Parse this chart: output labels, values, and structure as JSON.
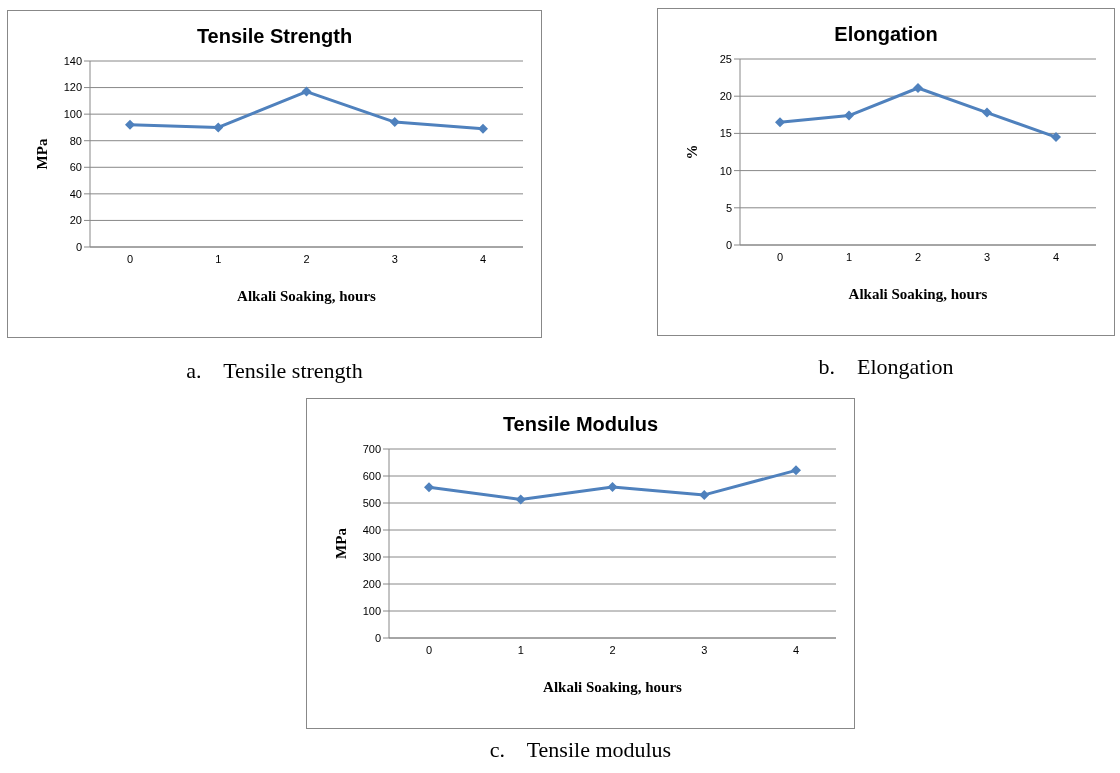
{
  "chart_data": [
    {
      "type": "line",
      "title": "Tensile Strength",
      "xlabel": "Alkali Soaking, hours",
      "ylabel": "MPa",
      "categories": [
        "0",
        "1",
        "2",
        "3",
        "4"
      ],
      "series": [
        {
          "color": "#4f81bd",
          "values": [
            92,
            90,
            117,
            94,
            89
          ]
        }
      ],
      "ylim": [
        0,
        140
      ],
      "yticks": [
        0,
        20,
        40,
        60,
        80,
        100,
        120,
        140
      ],
      "grid": "y",
      "legend": false,
      "marker": "diamond",
      "line_style": "solid",
      "annotations": [
        "a.    Tensile strength"
      ]
    },
    {
      "type": "line",
      "title": "Elongation",
      "xlabel": "Alkali Soaking, hours",
      "ylabel": "%",
      "categories": [
        "0",
        "1",
        "2",
        "3",
        "4"
      ],
      "series": [
        {
          "color": "#4f81bd",
          "values": [
            16.5,
            17.4,
            21.1,
            17.8,
            14.5
          ]
        }
      ],
      "ylim": [
        0,
        25
      ],
      "yticks": [
        0,
        5,
        10,
        15,
        20,
        25
      ],
      "grid": "y",
      "legend": false,
      "marker": "diamond",
      "line_style": "solid",
      "annotations": [
        "b.    Elongation"
      ]
    },
    {
      "type": "line",
      "title": "Tensile Modulus",
      "xlabel": "Alkali Soaking, hours",
      "ylabel": "MPa",
      "categories": [
        "0",
        "1",
        "2",
        "3",
        "4"
      ],
      "series": [
        {
          "color": "#4f81bd",
          "values": [
            558,
            513,
            559,
            530,
            621
          ]
        }
      ],
      "ylim": [
        0,
        700
      ],
      "yticks": [
        0,
        100,
        200,
        300,
        400,
        500,
        600,
        700
      ],
      "grid": "y",
      "legend": false,
      "marker": "diamond",
      "line_style": "solid",
      "annotations": [
        "c.    Tensile modulus"
      ]
    }
  ]
}
